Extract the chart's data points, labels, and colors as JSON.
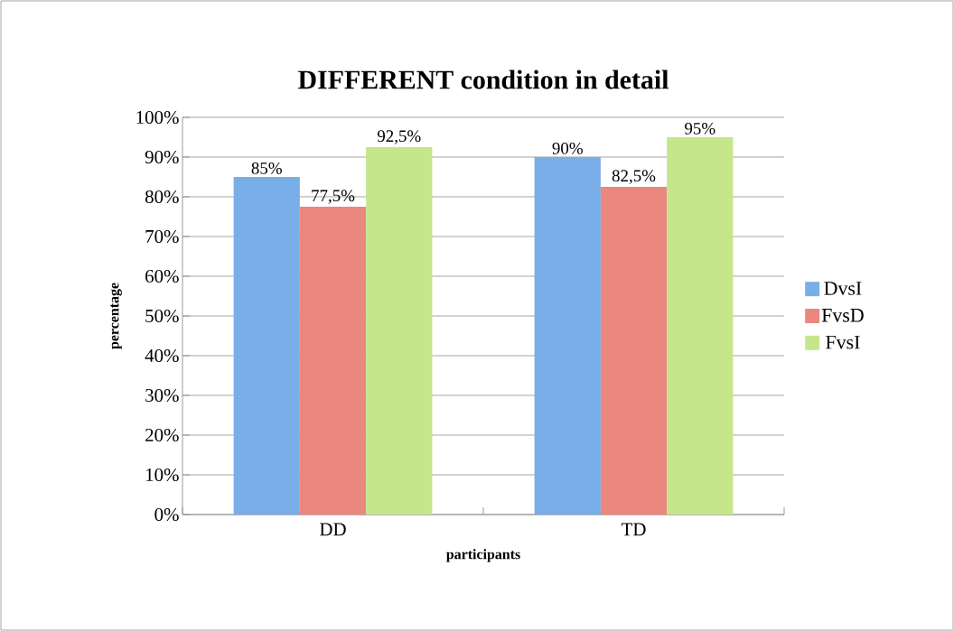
{
  "chart_data": {
    "type": "bar",
    "title": "DIFFERENT condition in detail",
    "xlabel": "participants",
    "ylabel": "percentage",
    "categories": [
      "DD",
      "TD"
    ],
    "series": [
      {
        "name": "DvsI",
        "color": "#7aaee8",
        "values": [
          85,
          90
        ],
        "value_labels": [
          "85%",
          "90%"
        ]
      },
      {
        "name": "FvsD",
        "color": "#ea8880",
        "values": [
          77.5,
          82.5
        ],
        "value_labels": [
          "77,5%",
          "82,5%"
        ]
      },
      {
        "name": "FvsI",
        "color": "#c6e68c",
        "values": [
          92.5,
          95
        ],
        "value_labels": [
          "92,5%",
          "95%"
        ]
      }
    ],
    "ylim": [
      0,
      100
    ],
    "yticks": [
      {
        "value": 0,
        "label": "0%"
      },
      {
        "value": 10,
        "label": "10%"
      },
      {
        "value": 20,
        "label": "20%"
      },
      {
        "value": 30,
        "label": "30%"
      },
      {
        "value": 40,
        "label": "40%"
      },
      {
        "value": 50,
        "label": "50%"
      },
      {
        "value": 60,
        "label": "60%"
      },
      {
        "value": 70,
        "label": "70%"
      },
      {
        "value": 80,
        "label": "80%"
      },
      {
        "value": 90,
        "label": "90%"
      },
      {
        "value": 100,
        "label": "100%"
      }
    ],
    "grid": "y",
    "legend": "right"
  }
}
